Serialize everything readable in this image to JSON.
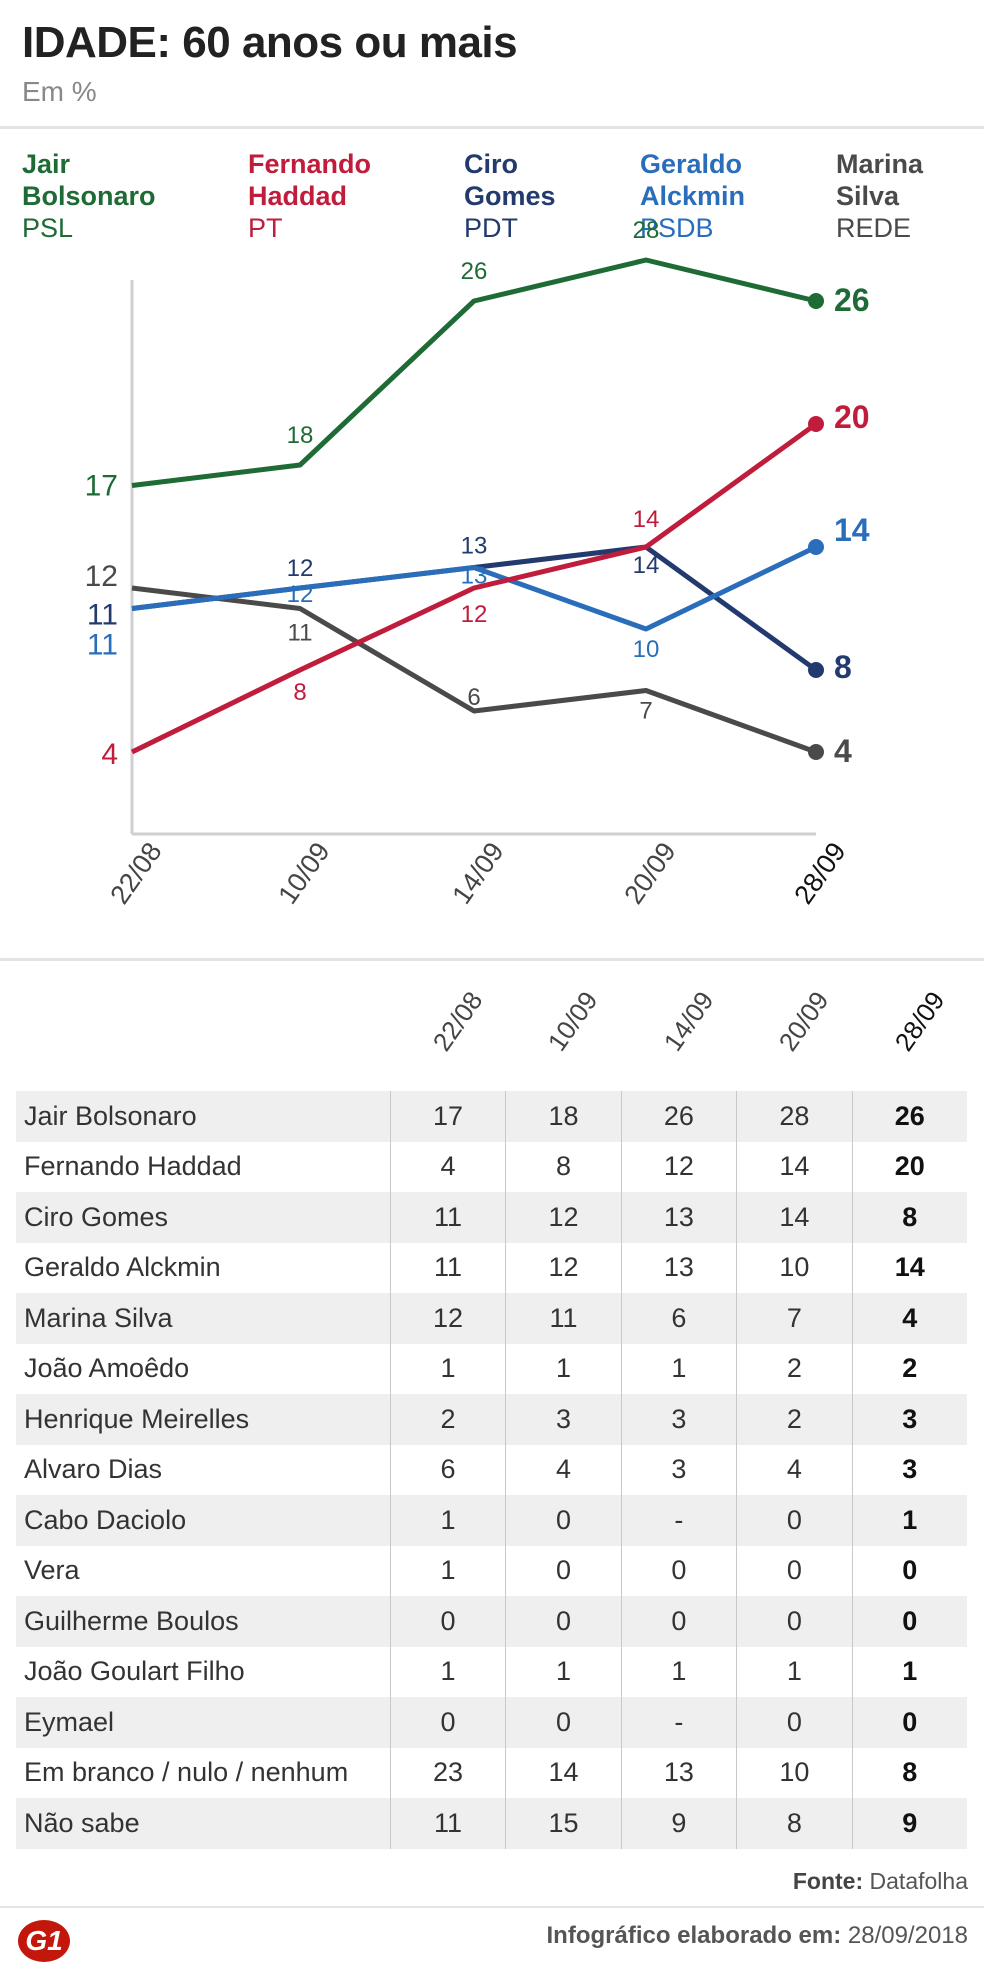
{
  "header": {
    "title": "IDADE: 60 anos ou mais",
    "subtitle": "Em %"
  },
  "legend": [
    {
      "name_line1": "Jair",
      "name_line2": "Bolsonaro",
      "party": "PSL",
      "color": "#1e6b35"
    },
    {
      "name_line1": "Fernando",
      "name_line2": "Haddad",
      "party": "PT",
      "color": "#c01c3c"
    },
    {
      "name_line1": "Ciro",
      "name_line2": "Gomes",
      "party": "PDT",
      "color": "#233a6e"
    },
    {
      "name_line1": "Geraldo",
      "name_line2": "Alckmin",
      "party": "PSDB",
      "color": "#2a6ebb"
    },
    {
      "name_line1": "Marina",
      "name_line2": "Silva",
      "party": "REDE",
      "color": "#4a4a4a"
    }
  ],
  "chart_data": {
    "type": "line",
    "title": "IDADE: 60 anos ou mais",
    "subtitle": "Em %",
    "categories": [
      "22/08",
      "10/09",
      "14/09",
      "20/09",
      "28/09"
    ],
    "ylim": [
      0,
      30
    ],
    "series": [
      {
        "name": "Jair Bolsonaro",
        "color": "#1e6b35",
        "values": [
          17,
          18,
          26,
          28,
          26
        ]
      },
      {
        "name": "Fernando Haddad",
        "color": "#c01c3c",
        "values": [
          4,
          8,
          12,
          14,
          20
        ]
      },
      {
        "name": "Ciro Gomes",
        "color": "#233a6e",
        "values": [
          11,
          12,
          13,
          14,
          8
        ]
      },
      {
        "name": "Geraldo Alckmin",
        "color": "#2a6ebb",
        "values": [
          11,
          12,
          13,
          10,
          14
        ]
      },
      {
        "name": "Marina Silva",
        "color": "#4a4a4a",
        "values": [
          12,
          11,
          6,
          7,
          4
        ]
      }
    ]
  },
  "table": {
    "columns": [
      "22/08",
      "10/09",
      "14/09",
      "20/09",
      "28/09"
    ],
    "rows": [
      {
        "name": "Jair Bolsonaro",
        "values": [
          "17",
          "18",
          "26",
          "28",
          "26"
        ]
      },
      {
        "name": "Fernando Haddad",
        "values": [
          "4",
          "8",
          "12",
          "14",
          "20"
        ]
      },
      {
        "name": "Ciro Gomes",
        "values": [
          "11",
          "12",
          "13",
          "14",
          "8"
        ]
      },
      {
        "name": "Geraldo Alckmin",
        "values": [
          "11",
          "12",
          "13",
          "10",
          "14"
        ]
      },
      {
        "name": "Marina Silva",
        "values": [
          "12",
          "11",
          "6",
          "7",
          "4"
        ]
      },
      {
        "name": "João Amoêdo",
        "values": [
          "1",
          "1",
          "1",
          "2",
          "2"
        ]
      },
      {
        "name": "Henrique Meirelles",
        "values": [
          "2",
          "3",
          "3",
          "2",
          "3"
        ]
      },
      {
        "name": "Alvaro Dias",
        "values": [
          "6",
          "4",
          "3",
          "4",
          "3"
        ]
      },
      {
        "name": "Cabo Daciolo",
        "values": [
          "1",
          "0",
          "-",
          "0",
          "1"
        ]
      },
      {
        "name": "Vera",
        "values": [
          "1",
          "0",
          "0",
          "0",
          "0"
        ]
      },
      {
        "name": "Guilherme Boulos",
        "values": [
          "0",
          "0",
          "0",
          "0",
          "0"
        ]
      },
      {
        "name": "João Goulart Filho",
        "values": [
          "1",
          "1",
          "1",
          "1",
          "1"
        ]
      },
      {
        "name": "Eymael",
        "values": [
          "0",
          "0",
          "-",
          "0",
          "0"
        ]
      },
      {
        "name": "Em branco / nulo / nenhum",
        "values": [
          "23",
          "14",
          "13",
          "10",
          "8"
        ]
      },
      {
        "name": "Não sabe",
        "values": [
          "11",
          "15",
          "9",
          "8",
          "9"
        ]
      }
    ]
  },
  "footer": {
    "source_label": "Fonte:",
    "source_value": "Datafolha",
    "credit_label": "Infográfico elaborado em:",
    "credit_date": "28/09/2018",
    "logo": "G1"
  }
}
